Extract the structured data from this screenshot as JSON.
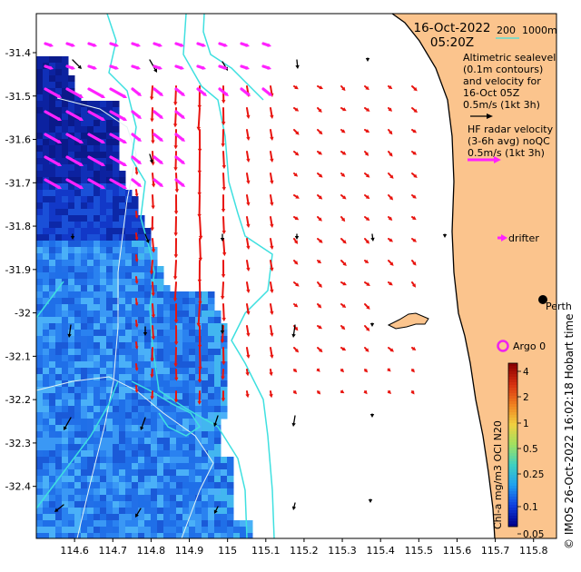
{
  "title": {
    "date": "16-Oct-2022",
    "time": "05:20Z"
  },
  "scale": {
    "primary": "200",
    "secondary": "1000m"
  },
  "legend": {
    "altimetric": [
      "Altimetric sealevel",
      "(0.1m contours)",
      "and velocity for",
      "16-Oct 05Z",
      "0.5m/s (1kt 3h)"
    ],
    "hf_radar": [
      "HF radar velocity",
      "(3-6h avg) noQC",
      "0.5m/s (1kt 3h)"
    ],
    "drifter": "drifter",
    "argo": "Argo 0"
  },
  "places": {
    "city": "Perth"
  },
  "side_caption": "© IMOS 26-Oct-2022 16:02:18 Hobart time",
  "colorbar": {
    "title": "Chl-a mg/m3 OCI N20",
    "ticks": [
      "4",
      "2",
      "1",
      "0.5",
      "0.25",
      "0.1",
      "0.05"
    ]
  },
  "axes": {
    "x_ticks": [
      "114.6",
      "114.7",
      "114.8",
      "114.9",
      "115",
      "115.1",
      "115.2",
      "115.3",
      "115.4",
      "115.5",
      "115.6",
      "115.7",
      "115.8"
    ],
    "y_ticks": [
      "-31.4",
      "-31.5",
      "-31.6",
      "-31.7",
      "-31.8",
      "-31.9",
      "-32",
      "-32.1",
      "-32.2",
      "-32.3",
      "-32.4"
    ],
    "lon_range": [
      114.5,
      115.86
    ],
    "lat_range": [
      -32.52,
      -31.31
    ]
  },
  "colors": {
    "land": "#fbc48d",
    "altimetry_arrow": "#000000",
    "radar_arrow": "#e8140f",
    "drifter_arrow": "#ff22ff",
    "argo_marker": "#ee22ee",
    "contour": "#3fe0e0",
    "bathymetry": "#e4f4f4"
  }
}
